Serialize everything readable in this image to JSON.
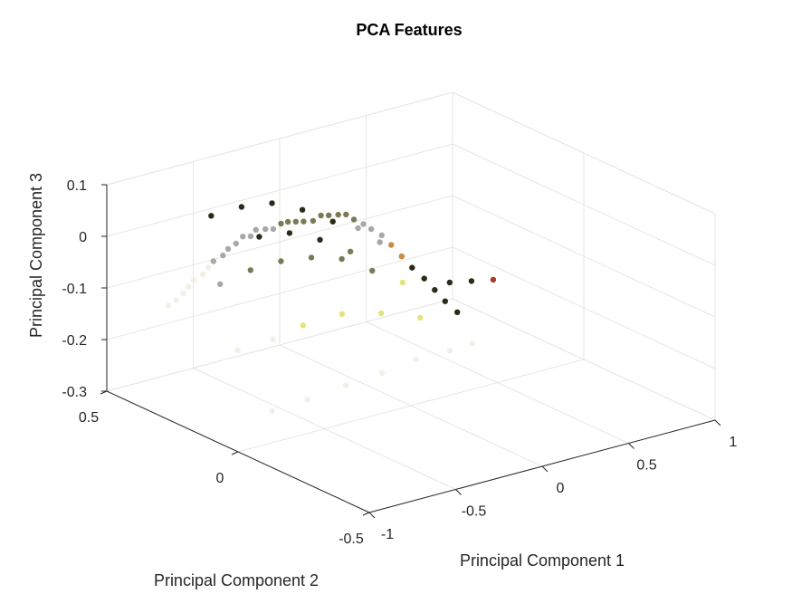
{
  "chart_data": {
    "type": "scatter",
    "title": "PCA Features",
    "xlabel": "Principal Component 1",
    "ylabel": "Principal Component 2",
    "zlabel": "Principal Component 3",
    "xlim": [
      -1,
      1
    ],
    "ylim": [
      -0.5,
      0.5
    ],
    "zlim": [
      -0.3,
      0.1
    ],
    "xticks": [
      -1,
      -0.5,
      0,
      0.5,
      1
    ],
    "yticks": [
      -0.5,
      0,
      0.5
    ],
    "zticks": [
      -0.3,
      -0.2,
      -0.1,
      0,
      0.1
    ],
    "xtick_labels": [
      "-1",
      "-0.5",
      "0",
      "0.5",
      "1"
    ],
    "ytick_labels": [
      "-0.5",
      "0",
      "0.5"
    ],
    "ztick_labels": [
      "-0.3",
      "-0.2",
      "-0.1",
      "0",
      "0.1"
    ],
    "grid": true,
    "series": [
      {
        "x": [
          -0.02,
          -0.05,
          -0.08,
          -0.12,
          -0.15,
          -0.18,
          -0.22,
          -0.25,
          -0.28,
          -0.32,
          -0.35,
          -0.38,
          -0.42,
          -0.45,
          -0.48,
          -0.52,
          -0.55,
          -0.58,
          -0.62,
          -0.65,
          -0.68,
          -0.72,
          -0.75,
          0.02,
          0.05,
          0.08,
          0.12,
          0.15,
          0.18,
          0.22,
          0.25,
          0.28,
          0.32,
          0.35,
          0.38,
          0.42,
          -0.3,
          -0.4,
          -0.5,
          -0.6,
          -0.7,
          -0.35,
          -0.45,
          -0.55,
          -0.65,
          -0.2,
          -0.3,
          -0.4,
          -0.5,
          -0.6,
          -0.7,
          -0.8,
          -0.25,
          -0.4,
          -0.55,
          -0.7,
          -0.8,
          -0.85,
          -0.1,
          -0.2,
          -0.35,
          -0.5,
          -0.65,
          -0.78,
          -0.88,
          0.3,
          0.35,
          0.4,
          0.2,
          0.25,
          0.15
        ],
        "y": [
          0.3,
          0.31,
          0.32,
          0.33,
          0.34,
          0.35,
          0.35,
          0.36,
          0.37,
          0.38,
          0.38,
          0.39,
          0.39,
          0.4,
          0.4,
          0.41,
          0.41,
          0.41,
          0.42,
          0.42,
          0.42,
          0.42,
          0.43,
          0.29,
          0.28,
          0.27,
          0.26,
          0.25,
          0.23,
          0.22,
          0.2,
          0.18,
          0.16,
          0.14,
          0.12,
          0.1,
          0.1,
          0.15,
          0.2,
          0.25,
          0.3,
          0.0,
          0.05,
          0.1,
          0.15,
          -0.1,
          -0.05,
          0.0,
          0.05,
          0.1,
          0.15,
          0.2,
          -0.2,
          -0.15,
          -0.1,
          -0.05,
          0.0,
          0.1,
          -0.3,
          -0.28,
          -0.25,
          -0.22,
          -0.18,
          -0.12,
          -0.05,
          0.05,
          0.0,
          -0.05,
          0.25,
          0.2,
          0.3
        ],
        "z": [
          0.0,
          0.0,
          -0.01,
          -0.01,
          -0.01,
          -0.01,
          -0.01,
          -0.02,
          -0.02,
          -0.02,
          -0.03,
          -0.03,
          -0.04,
          -0.05,
          -0.06,
          -0.07,
          -0.08,
          -0.09,
          -0.1,
          -0.11,
          -0.12,
          -0.13,
          -0.14,
          0.0,
          0.0,
          -0.01,
          -0.02,
          -0.03,
          -0.04,
          -0.06,
          -0.08,
          -0.1,
          -0.12,
          -0.14,
          -0.16,
          -0.18,
          0.06,
          0.08,
          0.09,
          0.08,
          0.06,
          0.03,
          0.05,
          0.06,
          0.05,
          -0.02,
          0.0,
          0.02,
          0.02,
          0.01,
          -0.01,
          -0.04,
          -0.06,
          -0.05,
          -0.05,
          -0.07,
          -0.1,
          -0.14,
          -0.1,
          -0.11,
          -0.12,
          -0.14,
          -0.16,
          -0.19,
          -0.22,
          -0.1,
          -0.09,
          -0.08,
          -0.06,
          -0.08,
          -0.04
        ]
      }
    ],
    "colors": {
      "dark": "#2b2b1a",
      "olive": "#7a7a55",
      "yellow": "#e8e27a",
      "gray": "#a8a8a8",
      "light": "#f4efe6",
      "orange": "#c98a4a",
      "red": "#a83a2a"
    }
  }
}
